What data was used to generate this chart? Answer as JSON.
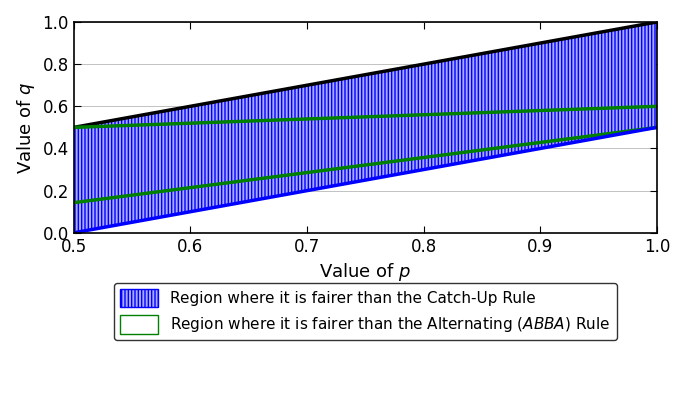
{
  "xlim": [
    0.5,
    1.0
  ],
  "ylim": [
    0.0,
    1.0
  ],
  "xlabel": "Value of $p$",
  "ylabel": "Value of $q$",
  "xlabel_fontsize": 13,
  "ylabel_fontsize": 13,
  "tick_fontsize": 12,
  "xticks": [
    0.5,
    0.6,
    0.7,
    0.8,
    0.9,
    1.0
  ],
  "yticks": [
    0.0,
    0.2,
    0.4,
    0.6,
    0.8,
    1.0
  ],
  "blue_color": "#0000FF",
  "green_color": "#008000",
  "legend_label_blue": "Region where it is fairer than the Catch-Up Rule",
  "legend_label_green": "Region where it is fairer than the Alternating ($ABBA$) Rule",
  "legend_fontsize": 11,
  "figsize": [
    6.85,
    4.09
  ],
  "dpi": 100,
  "q_upper_black_at_05": 0.5,
  "q_upper_black_at_10": 1.0,
  "q_upper_green_at_05": 0.5,
  "q_upper_green_at_10": 0.6,
  "q_lower_green_at_05": 0.143,
  "q_lower_green_at_10": 0.5,
  "q_lower_blue_at_05": 0.0,
  "q_lower_blue_at_10": 0.5
}
